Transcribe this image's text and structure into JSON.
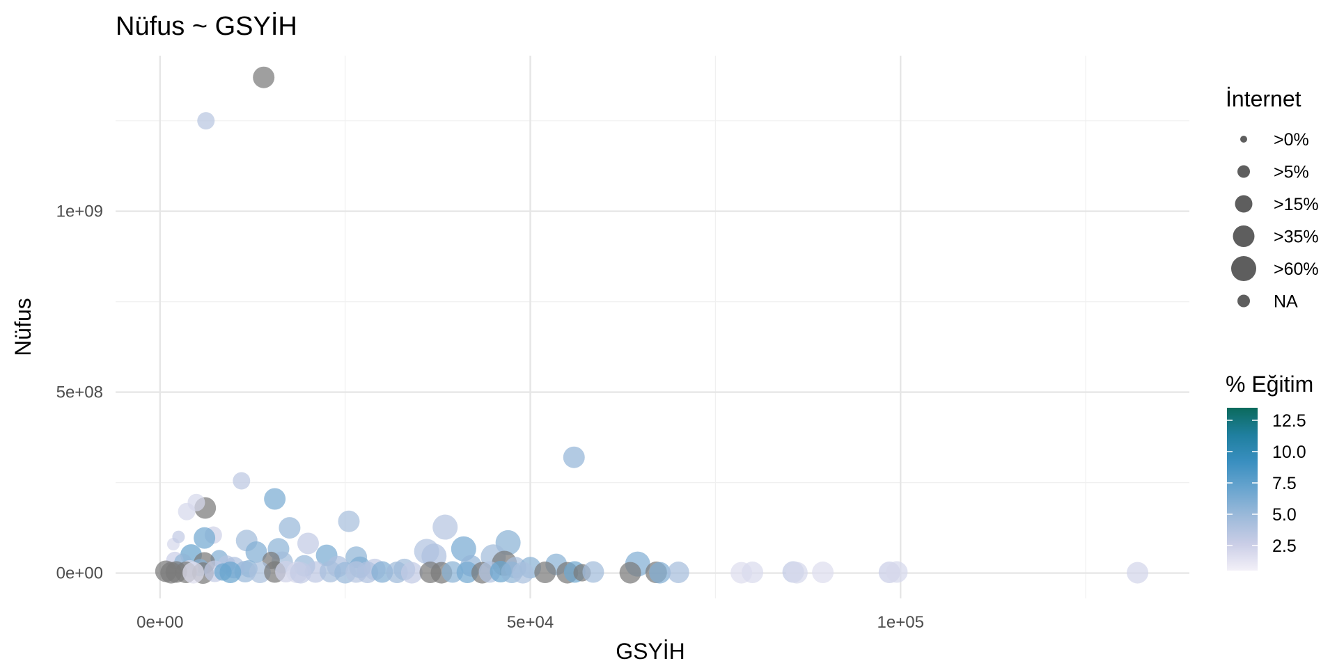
{
  "chart_data": {
    "type": "scatter",
    "title": "Nüfus ~ GSYİH",
    "xlabel": "GSYİH",
    "ylabel": "Nüfus",
    "xlim": [
      -6000,
      139000
    ],
    "ylim": [
      -70000000,
      1430000000
    ],
    "x_ticks": [
      {
        "value": 0,
        "label": "0e+00"
      },
      {
        "value": 50000,
        "label": "5e+04"
      },
      {
        "value": 100000,
        "label": "1e+05"
      }
    ],
    "y_ticks": [
      {
        "value": 0,
        "label": "0e+00"
      },
      {
        "value": 500000000,
        "label": "5e+08"
      },
      {
        "value": 1000000000,
        "label": "1e+09"
      }
    ],
    "x_minor": [
      25000,
      75000,
      125000
    ],
    "y_minor": [
      250000000,
      750000000,
      1250000000
    ],
    "grid": true,
    "size_legend": {
      "title": "İnternet",
      "position": "right",
      "color": "#4d4d4d",
      "entries": [
        {
          "label": ">0%",
          "level": 1
        },
        {
          "label": ">5%",
          "level": 2
        },
        {
          "label": ">15%",
          "level": 3
        },
        {
          "label": ">35%",
          "level": 4
        },
        {
          "label": ">60%",
          "level": 5
        },
        {
          "label": "NA",
          "level": 0
        }
      ]
    },
    "color_legend": {
      "title": "% Eğitim",
      "position": "right",
      "range": [
        0.5,
        13.5
      ],
      "ticks": [
        2.5,
        5.0,
        7.5,
        10.0,
        12.5
      ],
      "tick_labels": [
        "2.5",
        "5.0",
        "7.5",
        "10.0",
        "12.5"
      ],
      "colors": [
        "#f3f0f8",
        "#c9cde6",
        "#9dbada",
        "#6aa5cf",
        "#3a8fc0",
        "#1f7f9f",
        "#0b6a5c"
      ],
      "na_color": "#7a7a7a"
    },
    "points": [
      {
        "x": 14000,
        "y": 1370000000,
        "edu": null,
        "size": 4
      },
      {
        "x": 6200,
        "y": 1250000000,
        "edu": 3.5,
        "size": 3
      },
      {
        "x": 55900,
        "y": 320000000,
        "edu": 5.2,
        "size": 4
      },
      {
        "x": 11000,
        "y": 255000000,
        "edu": 3.3,
        "size": 3
      },
      {
        "x": 15500,
        "y": 205000000,
        "edu": 6.3,
        "size": 4
      },
      {
        "x": 6100,
        "y": 180000000,
        "edu": null,
        "size": 4
      },
      {
        "x": 4900,
        "y": 195000000,
        "edu": 2.0,
        "size": 3
      },
      {
        "x": 3600,
        "y": 170000000,
        "edu": 2.0,
        "size": 3
      },
      {
        "x": 25500,
        "y": 143000000,
        "edu": 4.3,
        "size": 4
      },
      {
        "x": 38500,
        "y": 127000000,
        "edu": 3.6,
        "size": 5
      },
      {
        "x": 17500,
        "y": 125000000,
        "edu": 5.0,
        "size": 4
      },
      {
        "x": 7200,
        "y": 105000000,
        "edu": 2.4,
        "size": 3
      },
      {
        "x": 6000,
        "y": 97000000,
        "edu": 6.6,
        "size": 4
      },
      {
        "x": 11700,
        "y": 90000000,
        "edu": 4.6,
        "size": 4
      },
      {
        "x": 47000,
        "y": 84000000,
        "edu": 5.6,
        "size": 5
      },
      {
        "x": 20000,
        "y": 82000000,
        "edu": 3.0,
        "size": 4
      },
      {
        "x": 1800,
        "y": 80000000,
        "edu": 2.0,
        "size": 2
      },
      {
        "x": 2500,
        "y": 100000000,
        "edu": 3.0,
        "size": 2
      },
      {
        "x": 41000,
        "y": 67000000,
        "edu": 6.4,
        "size": 5
      },
      {
        "x": 16000,
        "y": 67000000,
        "edu": 5.5,
        "size": 4
      },
      {
        "x": 36000,
        "y": 60000000,
        "edu": 3.8,
        "size": 5
      },
      {
        "x": 13000,
        "y": 58000000,
        "edu": 6.0,
        "size": 4
      },
      {
        "x": 4200,
        "y": 50000000,
        "edu": 7.0,
        "size": 4
      },
      {
        "x": 22500,
        "y": 49000000,
        "edu": 6.3,
        "size": 4
      },
      {
        "x": 37000,
        "y": 47000000,
        "edu": 4.0,
        "size": 5
      },
      {
        "x": 45000,
        "y": 45000000,
        "edu": 4.6,
        "size": 5
      },
      {
        "x": 26500,
        "y": 44000000,
        "edu": 5.4,
        "size": 4
      },
      {
        "x": 8000,
        "y": 40000000,
        "edu": 6.0,
        "size": 3
      },
      {
        "x": 2000,
        "y": 35000000,
        "edu": 2.6,
        "size": 3
      },
      {
        "x": 3100,
        "y": 30000000,
        "edu": 5.4,
        "size": 3
      },
      {
        "x": 6000,
        "y": 28000000,
        "edu": null,
        "size": 4
      },
      {
        "x": 46500,
        "y": 27000000,
        "edu": null,
        "size": 5
      },
      {
        "x": 64500,
        "y": 25000000,
        "edu": 6.0,
        "size": 5
      },
      {
        "x": 53500,
        "y": 24000000,
        "edu": 5.6,
        "size": 4
      },
      {
        "x": 16500,
        "y": 30000000,
        "edu": 4.6,
        "size": 4
      },
      {
        "x": 15000,
        "y": 35000000,
        "edu": null,
        "size": 3
      },
      {
        "x": 9000,
        "y": 25000000,
        "edu": 3.6,
        "size": 3
      },
      {
        "x": 19500,
        "y": 20000000,
        "edu": 5.0,
        "size": 4
      },
      {
        "x": 24000,
        "y": 18000000,
        "edu": 4.0,
        "size": 4
      },
      {
        "x": 27000,
        "y": 16000000,
        "edu": 6.2,
        "size": 4
      },
      {
        "x": 42000,
        "y": 20000000,
        "edu": 5.2,
        "size": 4
      },
      {
        "x": 48000,
        "y": 15000000,
        "edu": 4.4,
        "size": 4
      },
      {
        "x": 50000,
        "y": 15000000,
        "edu": 5.6,
        "size": 4
      },
      {
        "x": 33000,
        "y": 10000000,
        "edu": 4.6,
        "size": 4
      },
      {
        "x": 29000,
        "y": 10000000,
        "edu": 3.0,
        "size": 4
      },
      {
        "x": 12000,
        "y": 12000000,
        "edu": 5.6,
        "size": 3
      },
      {
        "x": 10000,
        "y": 15000000,
        "edu": 4.0,
        "size": 4
      },
      {
        "x": 5400,
        "y": 15000000,
        "edu": 5.8,
        "size": 3
      },
      {
        "x": 4000,
        "y": 12000000,
        "edu": 1.8,
        "size": 3
      },
      {
        "x": 800,
        "y": 5000000,
        "edu": null,
        "size": 4
      },
      {
        "x": 2200,
        "y": 3000000,
        "edu": null,
        "size": 4
      },
      {
        "x": 3500,
        "y": 2000000,
        "edu": null,
        "size": 4
      },
      {
        "x": 5800,
        "y": 0,
        "edu": null,
        "size": 4
      },
      {
        "x": 7400,
        "y": 5000000,
        "edu": 3.0,
        "size": 4
      },
      {
        "x": 8500,
        "y": 3000000,
        "edu": 7.0,
        "size": 3
      },
      {
        "x": 11500,
        "y": 4000000,
        "edu": 5.0,
        "size": 4
      },
      {
        "x": 13500,
        "y": 2000000,
        "edu": 4.2,
        "size": 4
      },
      {
        "x": 15500,
        "y": 3000000,
        "edu": null,
        "size": 4
      },
      {
        "x": 17000,
        "y": 4000000,
        "edu": 2.4,
        "size": 4
      },
      {
        "x": 18500,
        "y": 2000000,
        "edu": 2.0,
        "size": 4
      },
      {
        "x": 21000,
        "y": 3000000,
        "edu": 3.2,
        "size": 4
      },
      {
        "x": 23000,
        "y": 4000000,
        "edu": 4.4,
        "size": 4
      },
      {
        "x": 25000,
        "y": 1000000,
        "edu": 5.0,
        "size": 4
      },
      {
        "x": 26500,
        "y": 3000000,
        "edu": 3.6,
        "size": 4
      },
      {
        "x": 28000,
        "y": 2000000,
        "edu": 4.0,
        "size": 4
      },
      {
        "x": 30000,
        "y": 3000000,
        "edu": 6.0,
        "size": 4
      },
      {
        "x": 32000,
        "y": 2000000,
        "edu": 4.8,
        "size": 4
      },
      {
        "x": 34000,
        "y": 1000000,
        "edu": 3.0,
        "size": 4
      },
      {
        "x": 36500,
        "y": 2000000,
        "edu": null,
        "size": 4
      },
      {
        "x": 38000,
        "y": 1000000,
        "edu": null,
        "size": 4
      },
      {
        "x": 39500,
        "y": 3000000,
        "edu": 5.6,
        "size": 4
      },
      {
        "x": 41500,
        "y": 2000000,
        "edu": 6.6,
        "size": 4
      },
      {
        "x": 43500,
        "y": 1000000,
        "edu": null,
        "size": 4
      },
      {
        "x": 44500,
        "y": 3000000,
        "edu": 3.8,
        "size": 4
      },
      {
        "x": 46000,
        "y": 4000000,
        "edu": 7.0,
        "size": 4
      },
      {
        "x": 47500,
        "y": 2000000,
        "edu": 5.4,
        "size": 4
      },
      {
        "x": 49000,
        "y": 1000000,
        "edu": 4.2,
        "size": 4
      },
      {
        "x": 52000,
        "y": 2000000,
        "edu": null,
        "size": 4
      },
      {
        "x": 55000,
        "y": 1000000,
        "edu": null,
        "size": 4
      },
      {
        "x": 56000,
        "y": 3000000,
        "edu": 6.8,
        "size": 4
      },
      {
        "x": 57000,
        "y": 1000000,
        "edu": null,
        "size": 3
      },
      {
        "x": 58500,
        "y": 3000000,
        "edu": 4.6,
        "size": 4
      },
      {
        "x": 63500,
        "y": 1000000,
        "edu": null,
        "size": 4
      },
      {
        "x": 67000,
        "y": 2000000,
        "edu": null,
        "size": 4
      },
      {
        "x": 67500,
        "y": 1000000,
        "edu": 6.0,
        "size": 4
      },
      {
        "x": 70000,
        "y": 2000000,
        "edu": 4.4,
        "size": 4
      },
      {
        "x": 78500,
        "y": 1000000,
        "edu": 1.6,
        "size": 4
      },
      {
        "x": 80000,
        "y": 2000000,
        "edu": 1.8,
        "size": 4
      },
      {
        "x": 85500,
        "y": 3000000,
        "edu": 3.0,
        "size": 4
      },
      {
        "x": 86000,
        "y": 1000000,
        "edu": 2.0,
        "size": 4
      },
      {
        "x": 89500,
        "y": 2000000,
        "edu": 1.6,
        "size": 4
      },
      {
        "x": 98500,
        "y": 2000000,
        "edu": 2.6,
        "size": 4
      },
      {
        "x": 99500,
        "y": 3000000,
        "edu": 2.0,
        "size": 4
      },
      {
        "x": 132000,
        "y": 1000000,
        "edu": 2.2,
        "size": 4
      },
      {
        "x": 1500,
        "y": 1000000,
        "edu": null,
        "size": 4
      },
      {
        "x": 4500,
        "y": 1000000,
        "edu": 1.6,
        "size": 4
      },
      {
        "x": 9500,
        "y": 2000000,
        "edu": 7.0,
        "size": 4
      },
      {
        "x": 19000,
        "y": 1000000,
        "edu": 3.0,
        "size": 4
      }
    ]
  }
}
